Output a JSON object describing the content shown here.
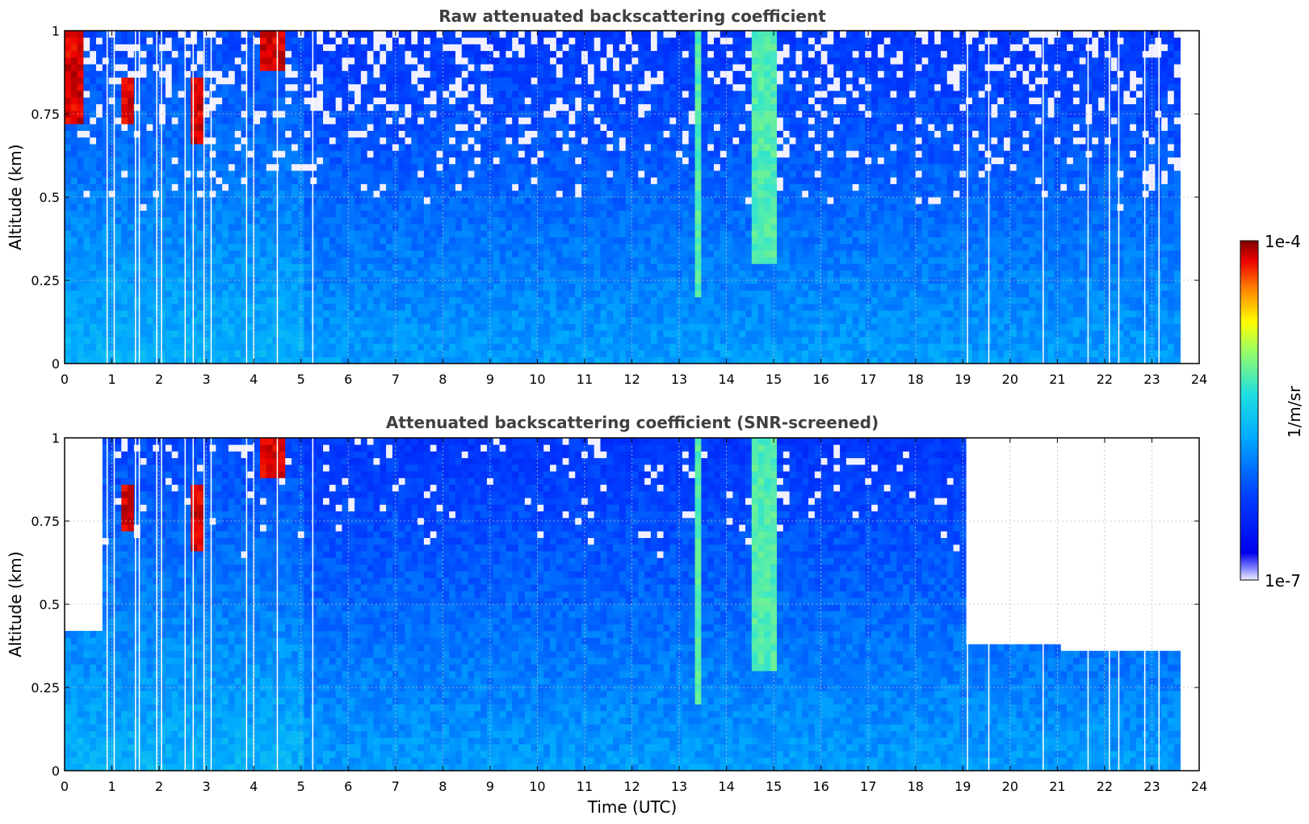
{
  "chart_data": [
    {
      "type": "heatmap",
      "title": "Raw attenuated backscattering coefficient",
      "xlabel": "",
      "ylabel": "Altitude (km)",
      "xlim": [
        0,
        24
      ],
      "ylim": [
        0,
        1
      ],
      "x_ticks": [
        "0",
        "1",
        "2",
        "3",
        "4",
        "5",
        "6",
        "7",
        "8",
        "9",
        "10",
        "11",
        "12",
        "13",
        "14",
        "15",
        "16",
        "17",
        "18",
        "19",
        "20",
        "21",
        "22",
        "23",
        "24"
      ],
      "y_ticks": [
        "0",
        "0.25",
        "0.5",
        "0.75",
        "1"
      ],
      "grid": true,
      "data_end_time": 23.6,
      "missing_profile_times": [
        0.9,
        1.05,
        1.5,
        1.58,
        1.95,
        2.05,
        2.55,
        2.72,
        2.95,
        3.1,
        3.85,
        4.0,
        4.5,
        5.25,
        19.1,
        19.55,
        20.7,
        21.65,
        22.1,
        22.3,
        22.85,
        23.15
      ],
      "features": [
        {
          "name": "high backscatter patch",
          "t0": 0.0,
          "t1": 0.35,
          "z0": 0.72,
          "z1": 1.0,
          "level": "high"
        },
        {
          "name": "high backscatter patch",
          "t0": 1.15,
          "t1": 1.45,
          "z0": 0.72,
          "z1": 0.85,
          "level": "high"
        },
        {
          "name": "high backscatter patch",
          "t0": 2.55,
          "t1": 2.9,
          "z0": 0.65,
          "z1": 0.85,
          "level": "high"
        },
        {
          "name": "high backscatter patch",
          "t0": 4.1,
          "t1": 4.6,
          "z0": 0.87,
          "z1": 1.0,
          "level": "high"
        },
        {
          "name": "moderate plume",
          "t0": 14.5,
          "t1": 15.0,
          "z0": 0.3,
          "z1": 1.0,
          "level": "moderate"
        },
        {
          "name": "moderate plume",
          "t0": 13.3,
          "t1": 13.45,
          "z0": 0.2,
          "z1": 1.0,
          "level": "moderate"
        }
      ]
    },
    {
      "type": "heatmap",
      "title": "Attenuated backscattering coefficient (SNR-screened)",
      "xlabel": "Time (UTC)",
      "ylabel": "Altitude (km)",
      "xlim": [
        0,
        24
      ],
      "ylim": [
        0,
        1
      ],
      "x_ticks": [
        "0",
        "1",
        "2",
        "3",
        "4",
        "5",
        "6",
        "7",
        "8",
        "9",
        "10",
        "11",
        "12",
        "13",
        "14",
        "15",
        "16",
        "17",
        "18",
        "19",
        "20",
        "21",
        "22",
        "23",
        "24"
      ],
      "y_ticks": [
        "0",
        "0.25",
        "0.5",
        "0.75",
        "1"
      ],
      "grid": true,
      "data_end_time": 23.6,
      "screened_top_altitude_km": [
        {
          "t0": 0.0,
          "t1": 0.75,
          "z": 0.41
        },
        {
          "t0": 18.95,
          "t1": 21.0,
          "z": 0.37
        },
        {
          "t0": 21.0,
          "t1": 23.6,
          "z": 0.35
        }
      ]
    }
  ],
  "colorbar": {
    "label": "1/m/sr",
    "max_label": "1e-4",
    "min_label": "1e-7",
    "scale": "log",
    "range": [
      1e-07,
      0.0001
    ],
    "colormap": "jet"
  }
}
